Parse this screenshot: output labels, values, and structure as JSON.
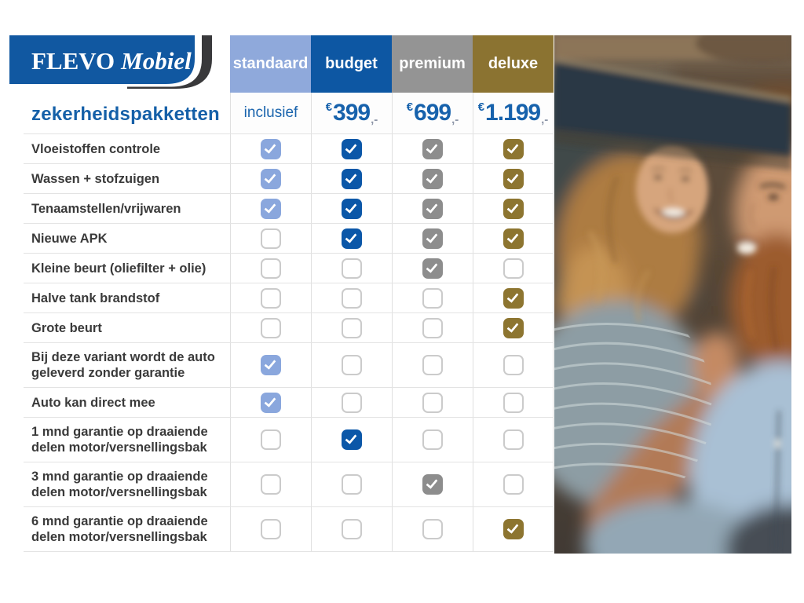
{
  "brand": {
    "name_part1": "FLEVO",
    "name_part2": "Mobiel"
  },
  "page_title": "zekerheidspakketten",
  "packages": [
    {
      "id": "standaard",
      "label": "standaard",
      "header_color": "#8fa9db",
      "check_color": "#8aa7dd",
      "price_label": "inclusief"
    },
    {
      "id": "budget",
      "label": "budget",
      "header_color": "#0d57a3",
      "check_color": "#0b57a8",
      "price_currency": "€",
      "price_amount": "399",
      "price_suffix": ",-"
    },
    {
      "id": "premium",
      "label": "premium",
      "header_color": "#949494",
      "check_color": "#8d8d8d",
      "price_currency": "€",
      "price_amount": "699",
      "price_suffix": ",-"
    },
    {
      "id": "deluxe",
      "label": "deluxe",
      "header_color": "#8b7331",
      "check_color": "#8d7530",
      "price_currency": "€",
      "price_amount": "1.199",
      "price_suffix": ",-"
    }
  ],
  "table": {
    "rows": [
      {
        "label": "Vloeistoffen controle",
        "cells": [
          "checked",
          "checked",
          "checked",
          "checked"
        ]
      },
      {
        "label": "Wassen + stofzuigen",
        "cells": [
          "checked",
          "checked",
          "checked",
          "checked"
        ]
      },
      {
        "label": "Tenaamstellen/vrijwaren",
        "cells": [
          "checked",
          "checked",
          "checked",
          "checked"
        ]
      },
      {
        "label": "Nieuwe APK",
        "cells": [
          "unchecked",
          "checked",
          "checked",
          "checked"
        ]
      },
      {
        "label": "Kleine beurt (oliefilter + olie)",
        "cells": [
          "unchecked",
          "unchecked",
          "checked",
          "unchecked"
        ]
      },
      {
        "label": "Halve tank brandstof",
        "cells": [
          "unchecked",
          "unchecked",
          "unchecked",
          "checked"
        ]
      },
      {
        "label": "Grote beurt",
        "cells": [
          "unchecked",
          "unchecked",
          "unchecked",
          "checked"
        ]
      },
      {
        "label": "Bij deze variant wordt de auto geleverd zonder garantie",
        "cells": [
          "checked",
          "unchecked",
          "unchecked",
          "unchecked"
        ]
      },
      {
        "label": "Auto kan direct mee",
        "cells": [
          "checked",
          "unchecked",
          "unchecked",
          "unchecked"
        ]
      },
      {
        "label": "1 mnd garantie op draaiende delen motor/versnellingsbak",
        "cells": [
          "unchecked",
          "checked",
          "unchecked",
          "unchecked"
        ]
      },
      {
        "label": "3 mnd garantie op draaiende delen motor/versnellingsbak",
        "cells": [
          "unchecked",
          "unchecked",
          "checked",
          "unchecked"
        ]
      },
      {
        "label": "6 mnd garantie op draaiende delen motor/versnellingsbak",
        "cells": [
          "unchecked",
          "unchecked",
          "unchecked",
          "checked"
        ]
      }
    ]
  },
  "photo": {
    "name": "couple-in-car-photo"
  },
  "colors": {
    "logo_blue": "#1158a1",
    "swoosh_dark": "#39393b",
    "title_blue": "#1560a8",
    "price_blue": "#1762ac",
    "label_text": "#3a3a3a",
    "grid_line": "#e3e3e3",
    "unchecked_border": "#cbcbcb"
  }
}
